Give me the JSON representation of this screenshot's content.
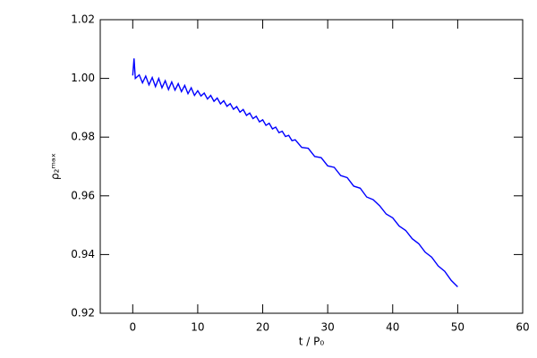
{
  "chart_data": {
    "type": "line",
    "x_label": "t / P₀",
    "y_label": "ρ₂ᵐᵃˣ",
    "x": [
      0,
      0.2,
      0.4,
      1,
      1.5,
      2,
      2.5,
      3,
      3.5,
      4,
      4.5,
      5,
      5.5,
      6,
      6.5,
      7,
      7.5,
      8,
      8.5,
      9,
      9.5,
      10,
      10.5,
      11,
      11.5,
      12,
      12.5,
      13,
      13.5,
      14,
      14.5,
      15,
      15.5,
      16,
      16.5,
      17,
      17.5,
      18,
      18.5,
      19,
      19.5,
      20,
      20.5,
      21,
      21.5,
      22,
      22.5,
      23,
      23.5,
      24,
      24.5,
      25,
      26,
      27,
      28,
      29,
      30,
      31,
      32,
      33,
      34,
      35,
      36,
      37,
      38,
      39,
      40,
      41,
      42,
      43,
      44,
      45,
      46,
      47,
      48,
      49,
      50
    ],
    "series": [
      {
        "color": "#0000ff",
        "values": [
          1.001,
          1.0068,
          1.0,
          1.0012,
          0.9985,
          1.0008,
          0.9978,
          1.0003,
          0.9972,
          1.0,
          0.9968,
          0.9992,
          0.9962,
          0.9988,
          0.996,
          0.9982,
          0.9955,
          0.9976,
          0.9948,
          0.9968,
          0.9942,
          0.9958,
          0.994,
          0.995,
          0.993,
          0.9942,
          0.9922,
          0.9933,
          0.9913,
          0.9924,
          0.9905,
          0.9914,
          0.9895,
          0.9904,
          0.9885,
          0.9894,
          0.9874,
          0.9882,
          0.9863,
          0.9871,
          0.9852,
          0.9859,
          0.984,
          0.9847,
          0.9828,
          0.9834,
          0.9815,
          0.982,
          0.9802,
          0.9806,
          0.9788,
          0.9791,
          0.9765,
          0.9762,
          0.9734,
          0.973,
          0.9702,
          0.9697,
          0.9669,
          0.9662,
          0.9633,
          0.9626,
          0.9596,
          0.9587,
          0.9566,
          0.9538,
          0.9525,
          0.9497,
          0.9482,
          0.9454,
          0.9437,
          0.9408,
          0.9391,
          0.9361,
          0.9343,
          0.9312,
          0.929
        ]
      }
    ],
    "xlim": [
      -5,
      60
    ],
    "xticks": [
      0,
      10,
      20,
      30,
      40,
      50,
      60
    ],
    "ylim": [
      0.92,
      1.02
    ],
    "yticks": [
      0.92,
      0.94,
      0.96,
      0.98,
      {
        "value": 1,
        "label": "1.00"
      },
      1.02
    ]
  }
}
